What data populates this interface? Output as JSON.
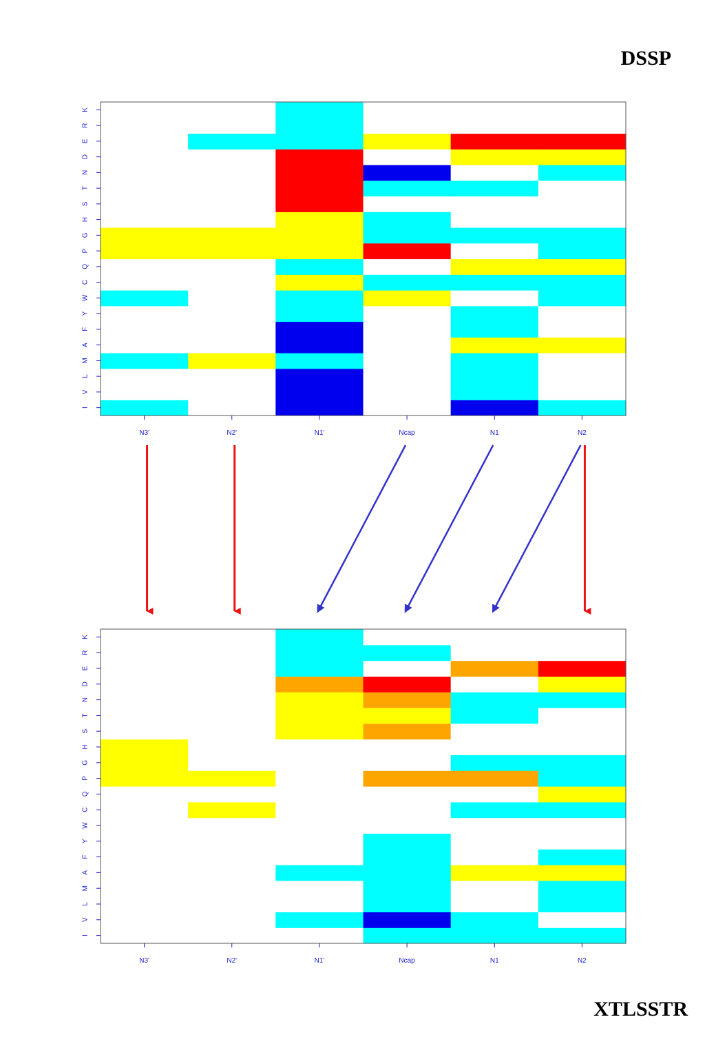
{
  "top_label": "DSSP",
  "bottom_label": "XTLSSTR",
  "colors": {
    "W": "#ffffff",
    "C": "#00ffff",
    "Y": "#ffff00",
    "R": "#ff0000",
    "B": "#0000ee",
    "O": "#ffa500",
    "tick": "#1a1ad6",
    "arrow_red": "#ee1111",
    "arrow_blue": "#3333cc"
  },
  "chart_data": [
    {
      "type": "heatmap",
      "name": "DSSP",
      "x_categories": [
        "N3'",
        "N2'",
        "N1'",
        "Ncap",
        "N1",
        "N2"
      ],
      "y_categories": [
        "I",
        "V",
        "L",
        "M",
        "A",
        "F",
        "Y",
        "W",
        "C",
        "Q",
        "P",
        "G",
        "H",
        "S",
        "T",
        "N",
        "D",
        "E",
        "R",
        "K"
      ],
      "cell_colors_by_row": {
        "I": [
          "C",
          "W",
          "B",
          "W",
          "B",
          "C"
        ],
        "V": [
          "W",
          "W",
          "B",
          "W",
          "C",
          "W"
        ],
        "L": [
          "W",
          "W",
          "B",
          "W",
          "C",
          "W"
        ],
        "M": [
          "C",
          "Y",
          "C",
          "W",
          "C",
          "W"
        ],
        "A": [
          "W",
          "W",
          "B",
          "W",
          "Y",
          "Y"
        ],
        "F": [
          "W",
          "W",
          "B",
          "W",
          "C",
          "W"
        ],
        "Y": [
          "W",
          "W",
          "C",
          "W",
          "C",
          "W"
        ],
        "W": [
          "C",
          "W",
          "C",
          "Y",
          "W",
          "C"
        ],
        "C": [
          "W",
          "W",
          "Y",
          "C",
          "C",
          "C"
        ],
        "Q": [
          "W",
          "W",
          "C",
          "W",
          "Y",
          "Y"
        ],
        "P": [
          "Y",
          "Y",
          "Y",
          "R",
          "W",
          "C"
        ],
        "G": [
          "Y",
          "Y",
          "Y",
          "C",
          "C",
          "C"
        ],
        "H": [
          "W",
          "W",
          "Y",
          "C",
          "W",
          "W"
        ],
        "S": [
          "W",
          "W",
          "R",
          "W",
          "W",
          "W"
        ],
        "T": [
          "W",
          "W",
          "R",
          "C",
          "C",
          "W"
        ],
        "N": [
          "W",
          "W",
          "R",
          "B",
          "W",
          "C"
        ],
        "D": [
          "W",
          "W",
          "R",
          "W",
          "Y",
          "Y"
        ],
        "E": [
          "W",
          "C",
          "C",
          "Y",
          "R",
          "R"
        ],
        "R": [
          "W",
          "W",
          "C",
          "W",
          "W",
          "W"
        ],
        "K": [
          "W",
          "W",
          "C",
          "W",
          "W",
          "W"
        ]
      }
    },
    {
      "type": "heatmap",
      "name": "XTLSSTR",
      "x_categories": [
        "N3'",
        "N2'",
        "N1'",
        "Ncap",
        "N1",
        "N2"
      ],
      "y_categories": [
        "I",
        "V",
        "L",
        "M",
        "A",
        "F",
        "Y",
        "W",
        "C",
        "Q",
        "P",
        "G",
        "H",
        "S",
        "T",
        "N",
        "D",
        "E",
        "R",
        "K"
      ],
      "cell_colors_by_row": {
        "I": [
          "W",
          "W",
          "W",
          "C",
          "C",
          "C"
        ],
        "V": [
          "W",
          "W",
          "C",
          "B",
          "C",
          "W"
        ],
        "L": [
          "W",
          "W",
          "W",
          "C",
          "W",
          "C"
        ],
        "M": [
          "W",
          "W",
          "W",
          "C",
          "W",
          "C"
        ],
        "A": [
          "W",
          "W",
          "C",
          "C",
          "Y",
          "Y"
        ],
        "F": [
          "W",
          "W",
          "W",
          "C",
          "W",
          "C"
        ],
        "Y": [
          "W",
          "W",
          "W",
          "C",
          "W",
          "W"
        ],
        "W": [
          "W",
          "W",
          "W",
          "W",
          "W",
          "W"
        ],
        "C": [
          "W",
          "Y",
          "W",
          "W",
          "C",
          "C"
        ],
        "Q": [
          "W",
          "W",
          "W",
          "W",
          "W",
          "Y"
        ],
        "P": [
          "Y",
          "Y",
          "W",
          "O",
          "O",
          "C"
        ],
        "G": [
          "Y",
          "W",
          "W",
          "W",
          "C",
          "C"
        ],
        "H": [
          "Y",
          "W",
          "W",
          "W",
          "W",
          "W"
        ],
        "S": [
          "W",
          "W",
          "Y",
          "O",
          "W",
          "W"
        ],
        "T": [
          "W",
          "W",
          "Y",
          "Y",
          "C",
          "W"
        ],
        "N": [
          "W",
          "W",
          "Y",
          "O",
          "C",
          "C"
        ],
        "D": [
          "W",
          "W",
          "O",
          "R",
          "W",
          "Y"
        ],
        "E": [
          "W",
          "W",
          "C",
          "W",
          "O",
          "R"
        ],
        "R": [
          "W",
          "W",
          "C",
          "C",
          "W",
          "W"
        ],
        "K": [
          "W",
          "W",
          "C",
          "W",
          "W",
          "W"
        ]
      }
    }
  ],
  "position_mapping": [
    {
      "from": "N3'",
      "to": "N3'",
      "color": "arrow_red"
    },
    {
      "from": "N2'",
      "to": "N2'",
      "color": "arrow_red"
    },
    {
      "from": "Ncap",
      "to": "N1'",
      "color": "arrow_blue"
    },
    {
      "from": "N1",
      "to": "Ncap",
      "color": "arrow_blue"
    },
    {
      "from": "N2",
      "to": "N1",
      "color": "arrow_blue"
    },
    {
      "from": "N2",
      "to": "N2",
      "color": "arrow_red"
    }
  ]
}
